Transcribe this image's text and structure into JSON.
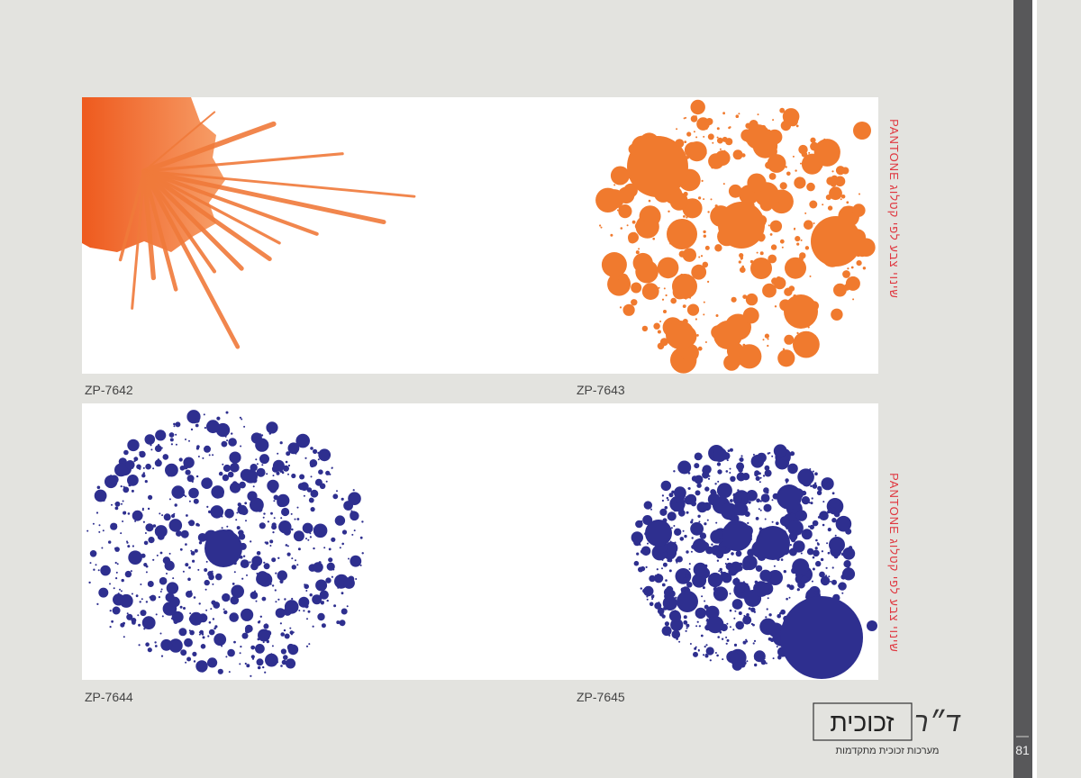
{
  "panels": [
    {
      "code": "ZP-7642"
    },
    {
      "code": "ZP-7643"
    },
    {
      "code": "ZP-7644"
    },
    {
      "code": "ZP-7645"
    }
  ],
  "side_notes": [
    "שינוי צבע לפי קטלוג PANTONE",
    "שינוי צבע לפי קטלוג PANTONE"
  ],
  "logo": {
    "mark": "ד״ר",
    "name": "זכוכית",
    "tagline": "מערכות זכוכית מתקדמות"
  },
  "page_number": "81"
}
